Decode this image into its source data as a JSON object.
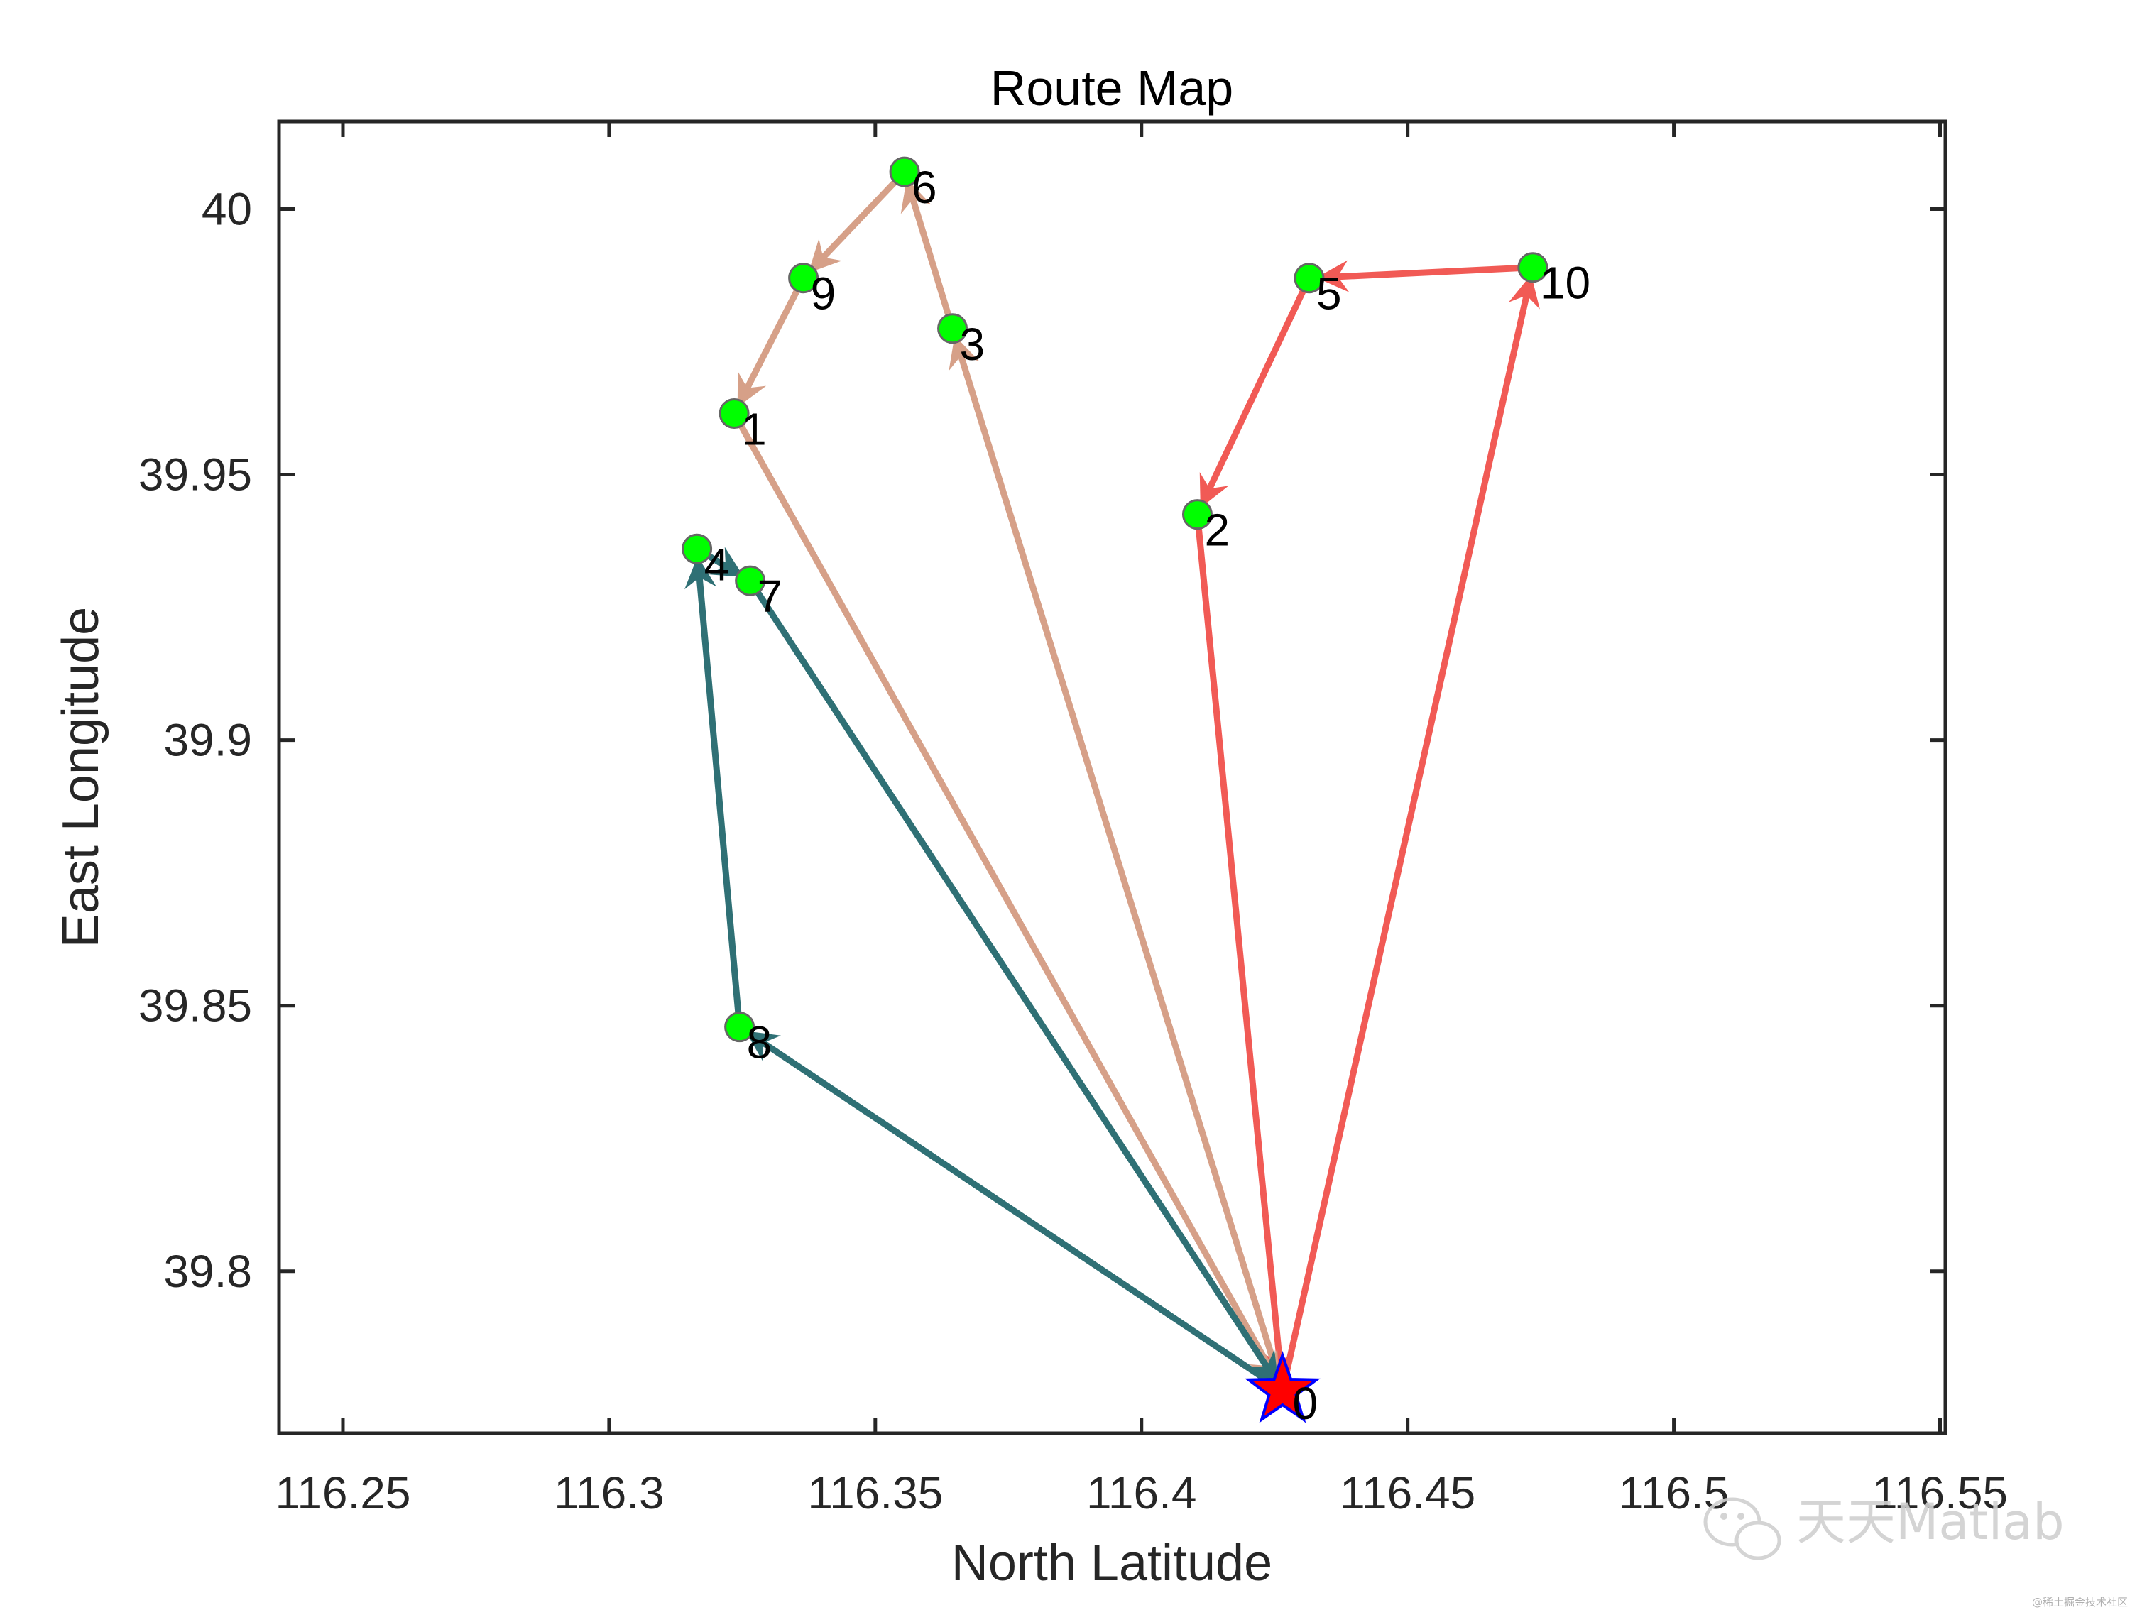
{
  "chart_data": {
    "type": "scatter",
    "title": "Route Map",
    "xlabel": "North Latitude",
    "ylabel": "East Longitude",
    "xlim": [
      116.238,
      116.551
    ],
    "ylim": [
      39.7695,
      40.0165
    ],
    "xticks": [
      116.25,
      116.3,
      116.35,
      116.4,
      116.45,
      116.5,
      116.55
    ],
    "xtick_labels": [
      "116.25",
      "116.3",
      "116.35",
      "116.4",
      "116.45",
      "116.5",
      "116.55"
    ],
    "yticks": [
      39.8,
      39.85,
      39.9,
      39.95,
      40.0
    ],
    "ytick_labels": [
      "39.8",
      "39.85",
      "39.9",
      "39.95",
      "40"
    ],
    "grid": false,
    "depot": {
      "label": "0",
      "x": 116.4265,
      "y": 39.7775,
      "marker": "star",
      "color": "#ff0000",
      "edge_color": "#0000ff"
    },
    "nodes": [
      {
        "label": "1",
        "x": 116.3235,
        "y": 39.9615
      },
      {
        "label": "2",
        "x": 116.4105,
        "y": 39.9425
      },
      {
        "label": "3",
        "x": 116.3645,
        "y": 39.9775
      },
      {
        "label": "4",
        "x": 116.3165,
        "y": 39.936
      },
      {
        "label": "5",
        "x": 116.4315,
        "y": 39.987
      },
      {
        "label": "6",
        "x": 116.3555,
        "y": 40.007
      },
      {
        "label": "7",
        "x": 116.3265,
        "y": 39.93
      },
      {
        "label": "8",
        "x": 116.3245,
        "y": 39.846
      },
      {
        "label": "9",
        "x": 116.3365,
        "y": 39.987
      },
      {
        "label": "10",
        "x": 116.4735,
        "y": 39.989
      }
    ],
    "node_color": "#00ff00",
    "node_edge_color": "#666666",
    "routes": [
      {
        "color": "#f15a55",
        "stops": [
          "0",
          "10",
          "5",
          "2",
          "0"
        ]
      },
      {
        "color": "#d6a088",
        "stops": [
          "0",
          "3",
          "6",
          "9",
          "1",
          "0"
        ]
      },
      {
        "color": "#2f7075",
        "stops": [
          "0",
          "8",
          "4",
          "7",
          "0"
        ]
      }
    ]
  },
  "watermark": {
    "text": "天天Matlab",
    "small_text": "@稀土掘金技术社区",
    "icon": "wechat-icon"
  }
}
